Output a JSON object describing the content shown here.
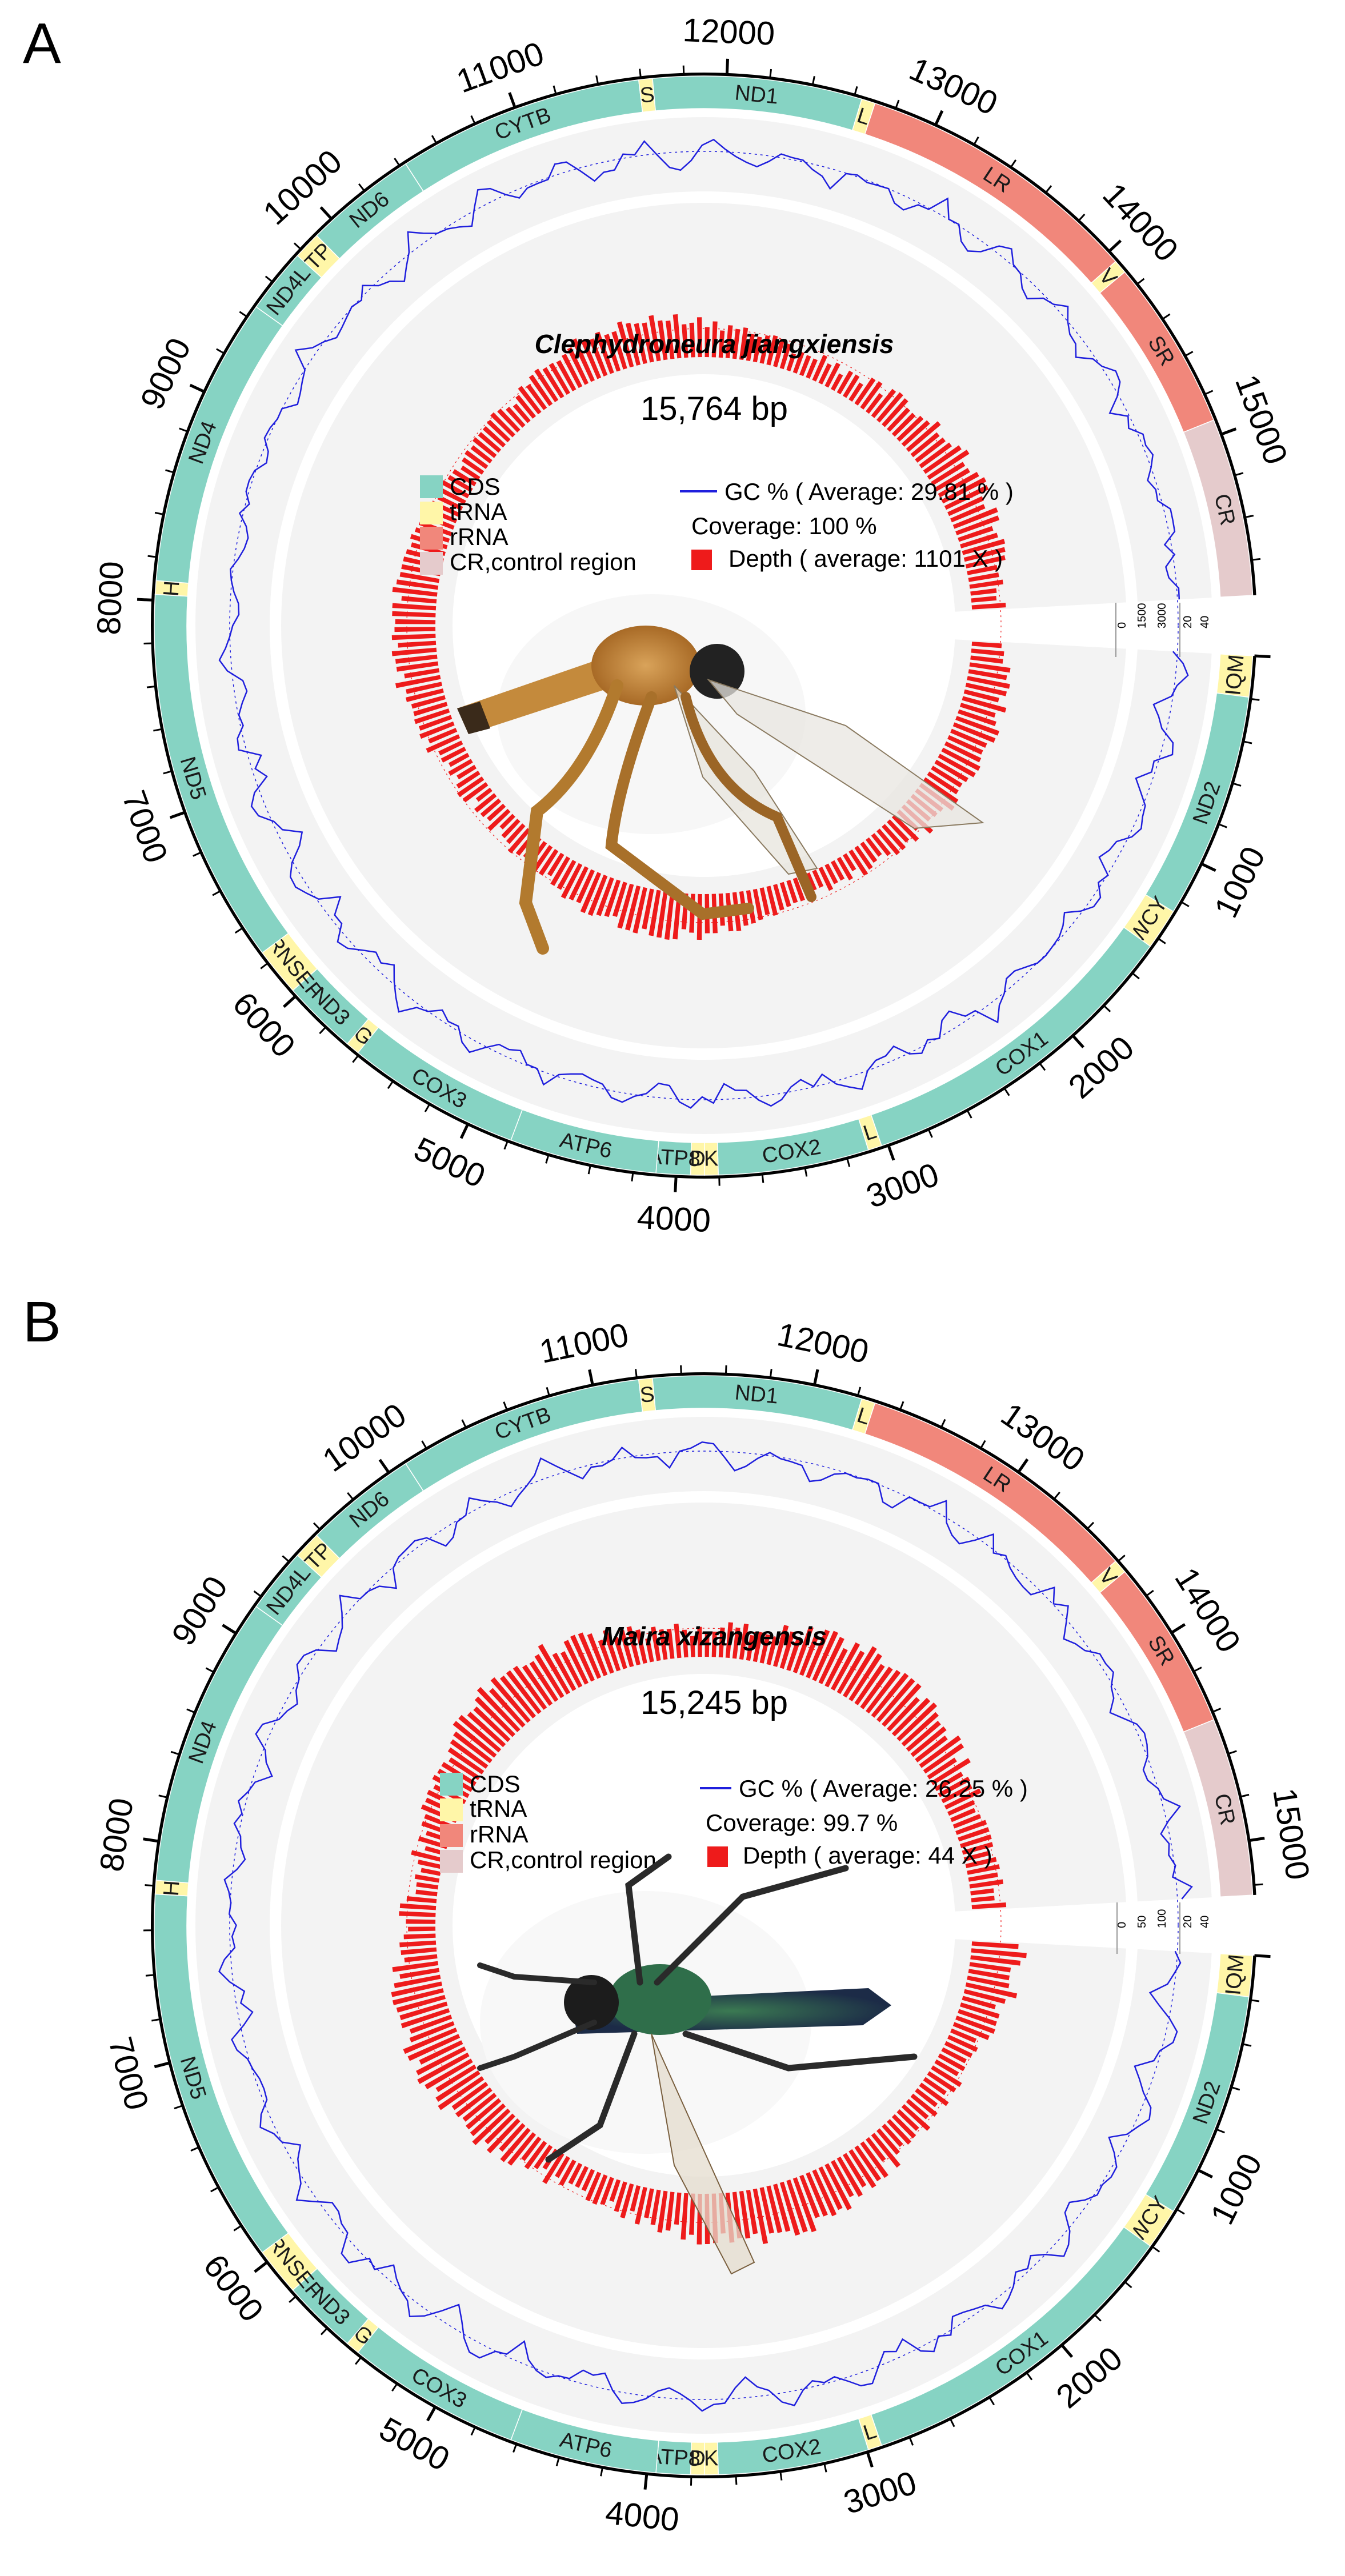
{
  "colors": {
    "cds": "#86d3c3",
    "trna": "#fff6a8",
    "rrna": "#f1877b",
    "cr": "#e5cbcc",
    "gc_line": "#1f1fdd",
    "depth": "#ee1b1b",
    "track_bg": "#f3f3f3"
  },
  "legend": {
    "cds": "CDS",
    "trna": "tRNA",
    "rrna": "rRNA",
    "cr": "CR,control region"
  },
  "panels": [
    {
      "label": "A",
      "species": "Clephydroneura jiangxiensis",
      "length_text": "15,764 bp",
      "genome_length": 15764,
      "gc_text": "GC % ( Average: 29.81 % )",
      "coverage_text": "Coverage: 100 %",
      "depth_text": "Depth ( average: 1101 X )",
      "depth_scale": [
        "0",
        "1500",
        "3000"
      ],
      "gc_scale": [
        "20",
        "40"
      ],
      "specimen_icon": "robber-fly-photo"
    },
    {
      "label": "B",
      "species": "Maira xizangensis",
      "length_text": "15,245 bp",
      "genome_length": 15245,
      "gc_text": "GC % ( Average: 26.25 % )",
      "coverage_text": "Coverage: 99.7 %",
      "depth_text": "Depth ( average: 44 X )",
      "depth_scale": [
        "0",
        "50",
        "100"
      ],
      "gc_scale": [
        "20",
        "40"
      ],
      "specimen_icon": "metallic-robber-fly-photo"
    }
  ],
  "tick_labels": [
    "1000",
    "2000",
    "3000",
    "4000",
    "5000",
    "6000",
    "7000",
    "8000",
    "9000",
    "10000",
    "11000",
    "12000",
    "13000",
    "14000",
    "15000"
  ],
  "genes": [
    {
      "name": "IQM",
      "type": "trna"
    },
    {
      "name": "ND2",
      "type": "cds"
    },
    {
      "name": "WCY",
      "type": "trna"
    },
    {
      "name": "COX1",
      "type": "cds"
    },
    {
      "name": "L",
      "type": "trna"
    },
    {
      "name": "COX2",
      "type": "cds"
    },
    {
      "name": "K",
      "type": "trna"
    },
    {
      "name": "D",
      "type": "trna"
    },
    {
      "name": "ATP8",
      "type": "cds"
    },
    {
      "name": "ATP6",
      "type": "cds"
    },
    {
      "name": "COX3",
      "type": "cds"
    },
    {
      "name": "G",
      "type": "trna"
    },
    {
      "name": "ND3",
      "type": "cds"
    },
    {
      "name": "ARNSEF",
      "type": "trna"
    },
    {
      "name": "ND5",
      "type": "cds"
    },
    {
      "name": "H",
      "type": "trna"
    },
    {
      "name": "ND4",
      "type": "cds"
    },
    {
      "name": "ND4L",
      "type": "cds"
    },
    {
      "name": "TP",
      "type": "trna"
    },
    {
      "name": "ND6",
      "type": "cds"
    },
    {
      "name": "CYTB",
      "type": "cds"
    },
    {
      "name": "S",
      "type": "trna"
    },
    {
      "name": "ND1",
      "type": "cds"
    },
    {
      "name": "L",
      "type": "trna"
    },
    {
      "name": "LR",
      "type": "rrna"
    },
    {
      "name": "V",
      "type": "trna"
    },
    {
      "name": "SR",
      "type": "rrna"
    },
    {
      "name": "CR",
      "type": "cr"
    }
  ]
}
